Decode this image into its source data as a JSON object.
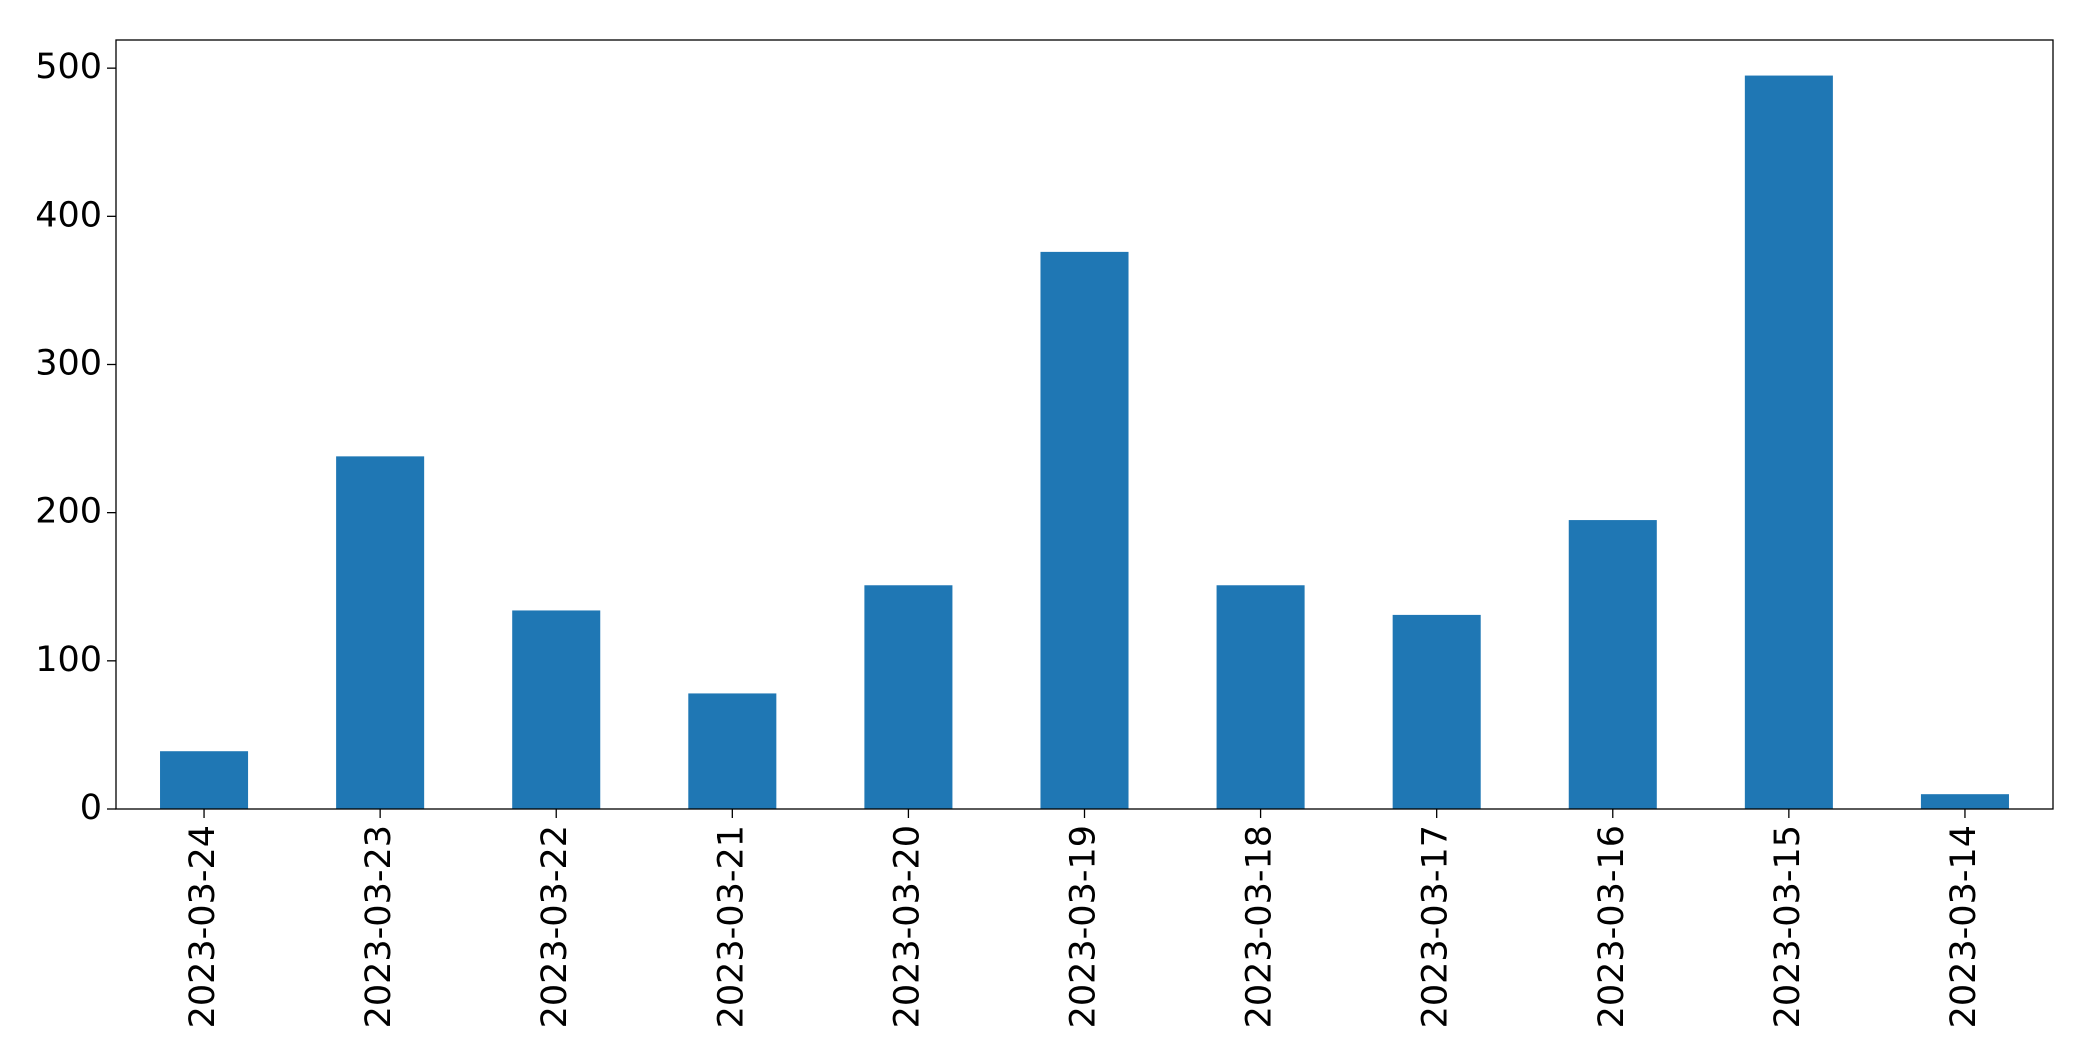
{
  "chart_data": {
    "type": "bar",
    "categories": [
      "2023-03-24",
      "2023-03-23",
      "2023-03-22",
      "2023-03-21",
      "2023-03-20",
      "2023-03-19",
      "2023-03-18",
      "2023-03-17",
      "2023-03-16",
      "2023-03-15",
      "2023-03-14"
    ],
    "values": [
      39,
      238,
      134,
      78,
      151,
      376,
      151,
      131,
      195,
      495,
      10
    ],
    "color": "#1f77b4",
    "ylim": [
      0,
      519
    ],
    "yticks": [
      0,
      100,
      200,
      300,
      400,
      500
    ],
    "grid": false
  }
}
